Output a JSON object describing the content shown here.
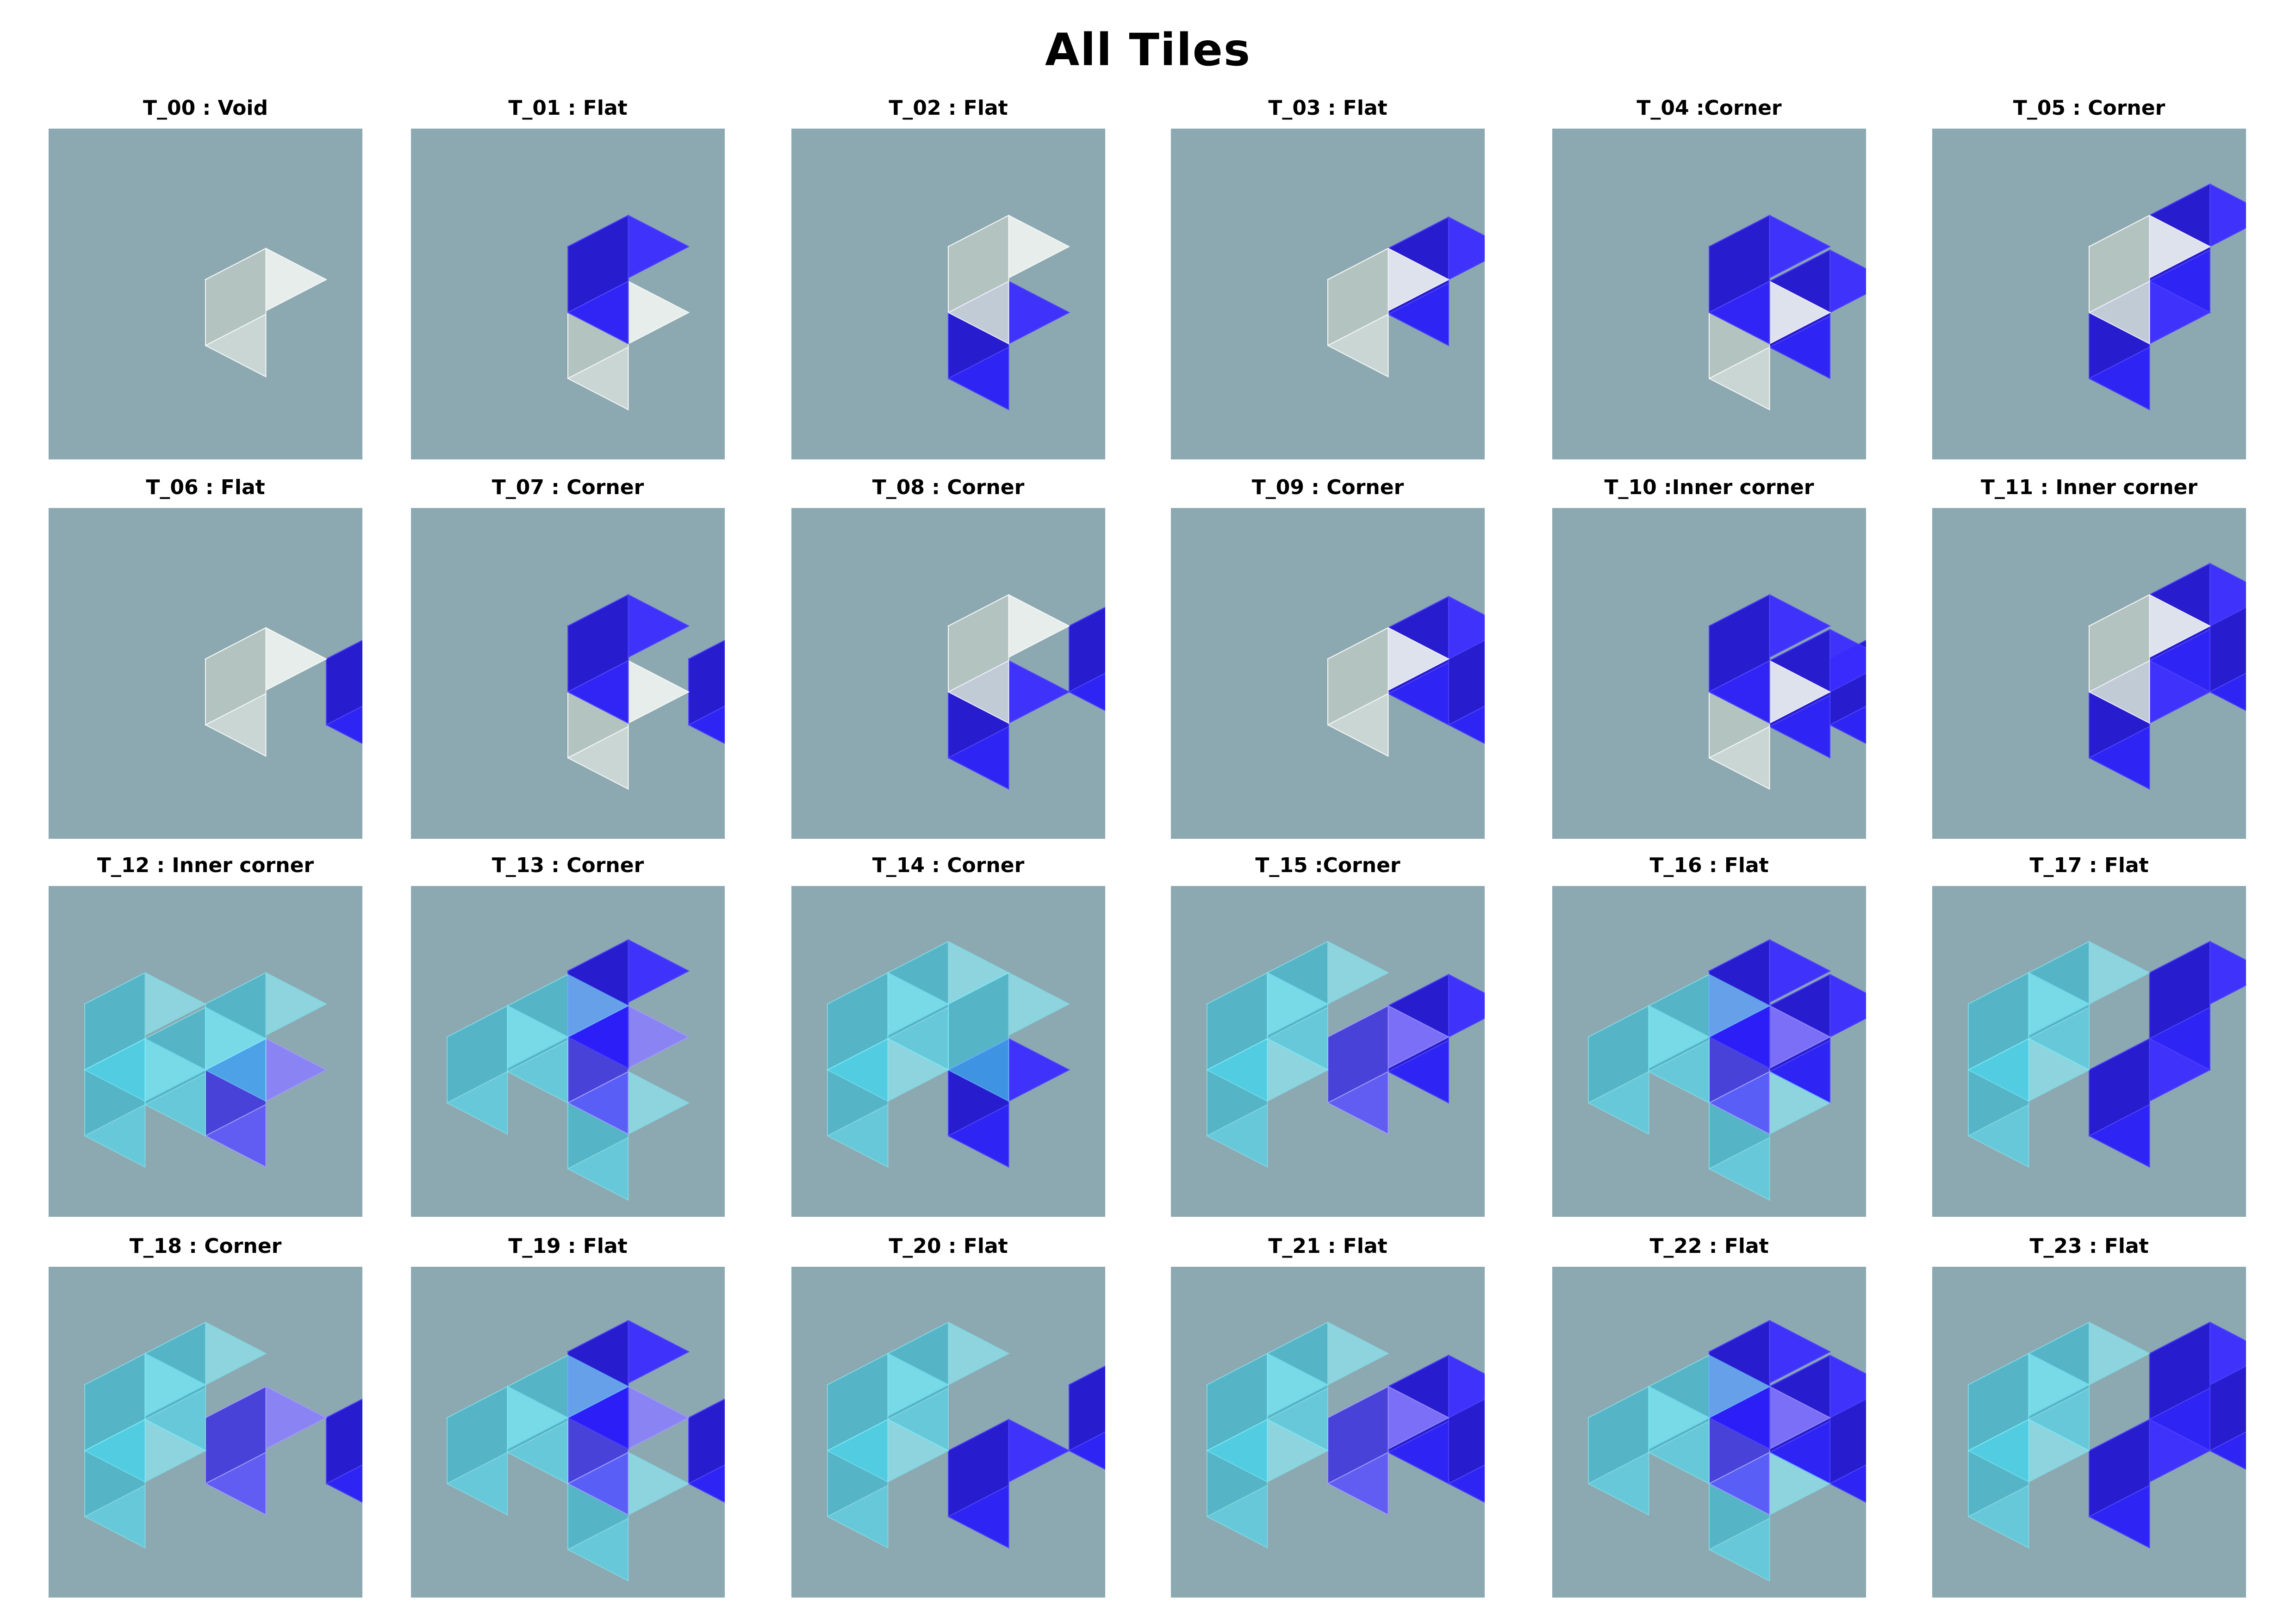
{
  "title": "All Tiles",
  "palette": {
    "panel": "#8ca8b0",
    "void_cube": "#e4ece8",
    "solid_cube": "#2a1df8",
    "transparent_cube": "#4ad8ee"
  },
  "tiles": [
    {
      "label": "T_00 : Void",
      "cubes": [
        [
          "c",
          0,
          0,
          0,
          "v"
        ]
      ]
    },
    {
      "label": "T_01 : Flat",
      "cubes": [
        [
          "c",
          0,
          -1,
          0,
          "b"
        ],
        [
          "c",
          0,
          1,
          0,
          "v"
        ]
      ]
    },
    {
      "label": "T_02 : Flat",
      "cubes": [
        [
          "c",
          0,
          -1,
          0,
          "v"
        ],
        [
          "c",
          0,
          1,
          0,
          "b"
        ]
      ]
    },
    {
      "label": "T_03 : Flat",
      "cubes": [
        [
          "c",
          0,
          0,
          0,
          "v"
        ],
        [
          "c",
          1,
          0,
          0,
          "b"
        ]
      ]
    },
    {
      "label": "T_04 :Corner",
      "cubes": [
        [
          "c",
          0,
          -1,
          0,
          "b"
        ],
        [
          "c",
          0,
          1,
          0,
          "v"
        ],
        [
          "c",
          1,
          1,
          0,
          "b"
        ]
      ]
    },
    {
      "label": "T_05 : Corner",
      "cubes": [
        [
          "c",
          0,
          -1,
          0,
          "v"
        ],
        [
          "c",
          1,
          -1,
          0,
          "b"
        ],
        [
          "c",
          0,
          1,
          0,
          "b"
        ]
      ]
    },
    {
      "label": "T_06 : Flat",
      "cubes": [
        [
          "c",
          0,
          0,
          0,
          "v"
        ],
        [
          "c",
          1,
          0,
          -1,
          "b"
        ]
      ]
    },
    {
      "label": "T_07 : Corner",
      "cubes": [
        [
          "c",
          0,
          -1,
          0,
          "b"
        ],
        [
          "c",
          0,
          1,
          0,
          "v"
        ],
        [
          "c",
          1,
          0,
          -1,
          "b"
        ]
      ]
    },
    {
      "label": "T_08 : Corner",
      "cubes": [
        [
          "c",
          0,
          -1,
          0,
          "v"
        ],
        [
          "c",
          1,
          -1,
          -1,
          "b"
        ],
        [
          "c",
          0,
          1,
          0,
          "b"
        ]
      ]
    },
    {
      "label": "T_09 : Corner",
      "cubes": [
        [
          "c",
          0,
          0,
          0,
          "v"
        ],
        [
          "c",
          1,
          0,
          0,
          "b"
        ],
        [
          "c",
          1,
          0,
          -1,
          "b"
        ]
      ]
    },
    {
      "label": "T_10 :Inner corner",
      "cubes": [
        [
          "c",
          0,
          -1,
          0,
          "b"
        ],
        [
          "c",
          0,
          1,
          0,
          "v"
        ],
        [
          "c",
          1,
          1,
          0,
          "b"
        ],
        [
          "c",
          1,
          0,
          -1,
          "b"
        ]
      ]
    },
    {
      "label": "T_11 : Inner corner",
      "cubes": [
        [
          "c",
          0,
          -1,
          0,
          "v"
        ],
        [
          "c",
          1,
          -1,
          -1,
          "b"
        ],
        [
          "c",
          1,
          -1,
          0,
          "b"
        ],
        [
          "c",
          0,
          1,
          0,
          "b"
        ]
      ]
    },
    {
      "label": "T_12 : Inner corner",
      "cubes": [
        [
          "c",
          -1,
          -1,
          1,
          "c"
        ],
        [
          "c",
          0,
          -1,
          0,
          "c"
        ],
        [
          "c",
          -1,
          1,
          1,
          "c"
        ],
        [
          "c",
          0,
          1,
          1,
          "c"
        ],
        [
          "c",
          0,
          1,
          0,
          "p"
        ]
      ]
    },
    {
      "label": "T_13 : Corner",
      "cubes": [
        [
          "c",
          0,
          -2,
          0,
          "b"
        ],
        [
          "c",
          -1,
          0,
          1,
          "c"
        ],
        [
          "c",
          0,
          0,
          1,
          "c"
        ],
        [
          "c",
          0,
          0,
          0,
          "p"
        ],
        [
          "c",
          0,
          2,
          0,
          "c"
        ]
      ]
    },
    {
      "label": "T_14 : Corner",
      "cubes": [
        [
          "c",
          -1,
          -1,
          1,
          "c"
        ],
        [
          "c",
          0,
          -1,
          1,
          "c"
        ],
        [
          "c",
          0,
          -1,
          0,
          "c"
        ],
        [
          "c",
          -1,
          1,
          1,
          "c"
        ],
        [
          "c",
          0,
          1,
          0,
          "b"
        ]
      ]
    },
    {
      "label": "T_15 :Corner",
      "cubes": [
        [
          "c",
          -1,
          -1,
          1,
          "c"
        ],
        [
          "c",
          0,
          -1,
          1,
          "c"
        ],
        [
          "c",
          -1,
          1,
          1,
          "c"
        ],
        [
          "c",
          0,
          0,
          0,
          "p"
        ],
        [
          "c",
          1,
          0,
          0,
          "b"
        ]
      ]
    },
    {
      "label": "T_16 : Flat",
      "cubes": [
        [
          "c",
          0,
          -2,
          0,
          "b"
        ],
        [
          "c",
          -1,
          0,
          1,
          "c"
        ],
        [
          "c",
          0,
          0,
          1,
          "c"
        ],
        [
          "c",
          1,
          0,
          0,
          "b"
        ],
        [
          "c",
          0,
          0,
          0,
          "p"
        ],
        [
          "c",
          0,
          2,
          0,
          "c"
        ]
      ]
    },
    {
      "label": "T_17 : Flat",
      "cubes": [
        [
          "c",
          -1,
          -1,
          1,
          "c"
        ],
        [
          "c",
          0,
          -1,
          1,
          "c"
        ],
        [
          "c",
          1,
          -1,
          0,
          "b"
        ],
        [
          "c",
          -1,
          1,
          1,
          "c"
        ],
        [
          "c",
          0,
          1,
          0,
          "b"
        ]
      ]
    },
    {
      "label": "T_18 : Corner",
      "cubes": [
        [
          "c",
          -1,
          -1,
          1,
          "c"
        ],
        [
          "c",
          0,
          -1,
          1,
          "c"
        ],
        [
          "c",
          -1,
          1,
          1,
          "c"
        ],
        [
          "c",
          0,
          0,
          0,
          "p"
        ],
        [
          "c",
          1,
          0,
          -1,
          "b"
        ]
      ]
    },
    {
      "label": "T_19 : Flat",
      "cubes": [
        [
          "c",
          0,
          -2,
          0,
          "b"
        ],
        [
          "c",
          -1,
          0,
          1,
          "c"
        ],
        [
          "c",
          0,
          0,
          1,
          "c"
        ],
        [
          "c",
          1,
          0,
          -1,
          "b"
        ],
        [
          "c",
          0,
          0,
          0,
          "p"
        ],
        [
          "c",
          0,
          2,
          0,
          "c"
        ]
      ]
    },
    {
      "label": "T_20 : Flat",
      "cubes": [
        [
          "c",
          -1,
          -1,
          1,
          "c"
        ],
        [
          "c",
          0,
          -1,
          1,
          "c"
        ],
        [
          "c",
          -1,
          1,
          1,
          "c"
        ],
        [
          "c",
          1,
          -1,
          -1,
          "b"
        ],
        [
          "c",
          0,
          1,
          0,
          "b"
        ]
      ]
    },
    {
      "label": "T_21 : Flat",
      "cubes": [
        [
          "c",
          -1,
          -1,
          1,
          "c"
        ],
        [
          "c",
          0,
          -1,
          1,
          "c"
        ],
        [
          "c",
          -1,
          1,
          1,
          "c"
        ],
        [
          "c",
          1,
          0,
          -1,
          "b"
        ],
        [
          "c",
          0,
          0,
          0,
          "p"
        ],
        [
          "c",
          1,
          0,
          0,
          "b"
        ]
      ]
    },
    {
      "label": "T_22 : Flat",
      "cubes": [
        [
          "c",
          0,
          -2,
          0,
          "b"
        ],
        [
          "c",
          -1,
          0,
          1,
          "c"
        ],
        [
          "c",
          0,
          0,
          1,
          "c"
        ],
        [
          "c",
          1,
          0,
          -1,
          "b"
        ],
        [
          "c",
          1,
          0,
          0,
          "b"
        ],
        [
          "c",
          0,
          0,
          0,
          "p"
        ],
        [
          "c",
          0,
          2,
          0,
          "c"
        ]
      ]
    },
    {
      "label": "T_23 : Flat",
      "cubes": [
        [
          "c",
          -1,
          -1,
          1,
          "c"
        ],
        [
          "c",
          0,
          -1,
          1,
          "c"
        ],
        [
          "c",
          -1,
          1,
          1,
          "c"
        ],
        [
          "c",
          1,
          -1,
          -1,
          "b"
        ],
        [
          "c",
          1,
          -1,
          0,
          "b"
        ],
        [
          "c",
          0,
          1,
          0,
          "b"
        ]
      ]
    }
  ]
}
